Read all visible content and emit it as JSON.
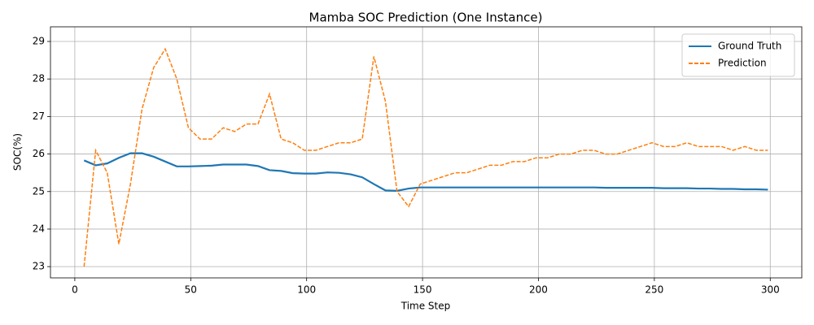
{
  "chart_data": {
    "type": "line",
    "title": "Mamba SOC Prediction (One Instance)",
    "x_label": "Time Step",
    "y_label": "SOC(%)",
    "x": [
      4,
      9,
      14,
      19,
      24,
      29,
      34,
      39,
      44,
      49,
      54,
      59,
      64,
      69,
      74,
      79,
      84,
      89,
      94,
      99,
      104,
      109,
      114,
      119,
      124,
      129,
      134,
      139,
      144,
      149,
      154,
      159,
      164,
      169,
      174,
      179,
      184,
      189,
      194,
      199,
      204,
      209,
      214,
      219,
      224,
      229,
      234,
      239,
      244,
      249,
      254,
      259,
      264,
      269,
      274,
      279,
      284,
      289,
      294,
      299
    ],
    "series": [
      {
        "name": "Ground Truth",
        "color": "#1f77b4",
        "linestyle": "solid",
        "values": [
          25.83,
          25.7,
          25.75,
          25.9,
          26.02,
          26.02,
          25.93,
          25.8,
          25.67,
          25.67,
          25.68,
          25.69,
          25.72,
          25.72,
          25.72,
          25.68,
          25.57,
          25.55,
          25.49,
          25.48,
          25.48,
          25.51,
          25.5,
          25.46,
          25.38,
          25.2,
          25.03,
          25.02,
          25.08,
          25.11,
          25.11,
          25.11,
          25.11,
          25.11,
          25.11,
          25.11,
          25.11,
          25.11,
          25.11,
          25.11,
          25.11,
          25.11,
          25.11,
          25.11,
          25.11,
          25.1,
          25.1,
          25.1,
          25.1,
          25.1,
          25.09,
          25.09,
          25.09,
          25.08,
          25.08,
          25.07,
          25.07,
          25.06,
          25.06,
          25.05
        ]
      },
      {
        "name": "Prediction",
        "color": "#ff7f0e",
        "linestyle": "dashed",
        "values": [
          23.0,
          26.1,
          25.5,
          23.6,
          25.2,
          27.2,
          28.3,
          28.8,
          28.0,
          26.7,
          26.4,
          26.4,
          26.7,
          26.6,
          26.8,
          26.8,
          27.6,
          26.4,
          26.3,
          26.1,
          26.1,
          26.2,
          26.3,
          26.3,
          26.4,
          28.6,
          27.4,
          25.0,
          24.6,
          25.2,
          25.3,
          25.4,
          25.5,
          25.5,
          25.6,
          25.7,
          25.7,
          25.8,
          25.8,
          25.9,
          25.9,
          26.0,
          26.0,
          26.1,
          26.1,
          26.0,
          26.0,
          26.1,
          26.2,
          26.3,
          26.2,
          26.2,
          26.3,
          26.2,
          26.2,
          26.2,
          26.1,
          26.2,
          26.1,
          26.1
        ]
      }
    ],
    "xlim": [
      -10.5,
      313.6
    ],
    "xticks": [
      0,
      50,
      100,
      150,
      200,
      250,
      300
    ],
    "ylim": [
      22.7,
      29.39
    ],
    "yticks": [
      23,
      24,
      25,
      26,
      27,
      28,
      29
    ],
    "grid": true,
    "legend": "upper right"
  }
}
